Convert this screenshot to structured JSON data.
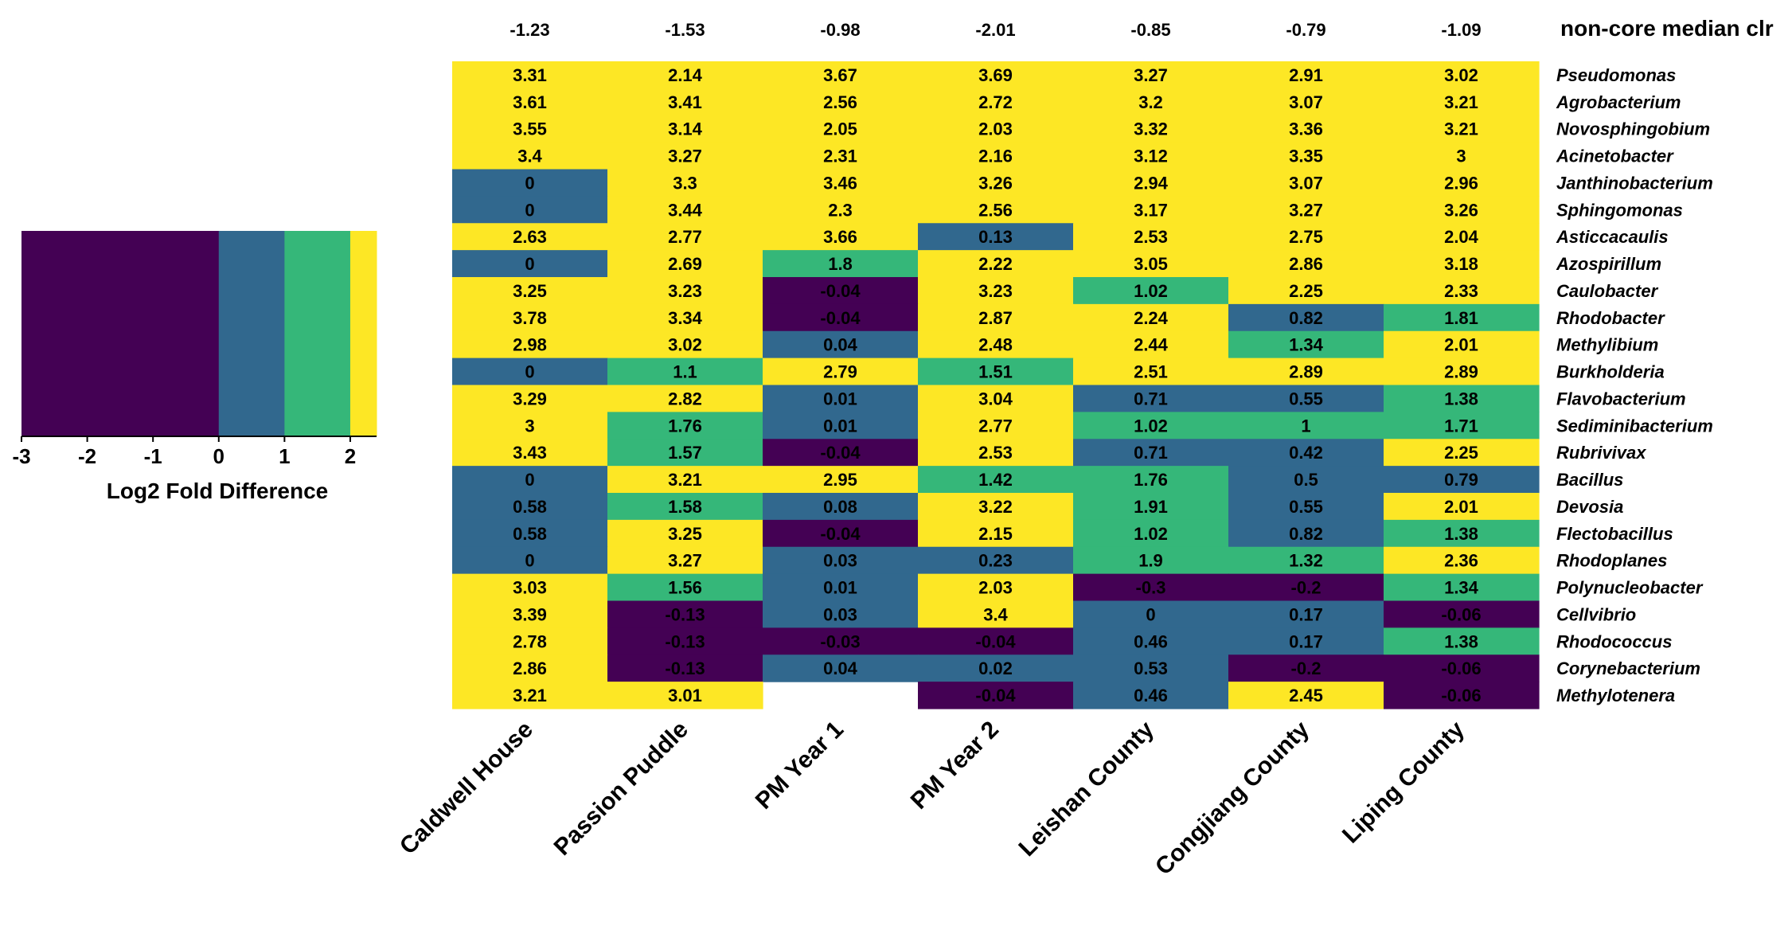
{
  "chart_data": {
    "type": "heatmap",
    "columns": [
      "Caldwell House",
      "Passion Puddle",
      "PM Year 1",
      "PM Year 2",
      "Leishan County",
      "Congjiang County",
      "Liping County"
    ],
    "top_row_label": "non-core median clr",
    "top_row_values": [
      "-1.23",
      "-1.53",
      "-0.98",
      "-2.01",
      "-0.85",
      "-0.79",
      "-1.09"
    ],
    "rows": [
      "Pseudomonas",
      "Agrobacterium",
      "Novosphingobium",
      "Acinetobacter",
      "Janthinobacterium",
      "Sphingomonas",
      "Asticcacaulis",
      "Azospirillum",
      "Caulobacter",
      "Rhodobacter",
      "Methylibium",
      "Burkholderia",
      "Flavobacterium",
      "Sediminibacterium",
      "Rubrivivax",
      "Bacillus",
      "Devosia",
      "Flectobacillus",
      "Rhodoplanes",
      "Polynucleobacter",
      "Cellvibrio",
      "Rhodococcus",
      "Corynebacterium",
      "Methylotenera"
    ],
    "values": [
      [
        "3.31",
        "2.14",
        "3.67",
        "3.69",
        "3.27",
        "2.91",
        "3.02"
      ],
      [
        "3.61",
        "3.41",
        "2.56",
        "2.72",
        "3.2",
        "3.07",
        "3.21"
      ],
      [
        "3.55",
        "3.14",
        "2.05",
        "2.03",
        "3.32",
        "3.36",
        "3.21"
      ],
      [
        "3.4",
        "3.27",
        "2.31",
        "2.16",
        "3.12",
        "3.35",
        "3"
      ],
      [
        "0",
        "3.3",
        "3.46",
        "3.26",
        "2.94",
        "3.07",
        "2.96"
      ],
      [
        "0",
        "3.44",
        "2.3",
        "2.56",
        "3.17",
        "3.27",
        "3.26"
      ],
      [
        "2.63",
        "2.77",
        "3.66",
        "0.13",
        "2.53",
        "2.75",
        "2.04"
      ],
      [
        "0",
        "2.69",
        "1.8",
        "2.22",
        "3.05",
        "2.86",
        "3.18"
      ],
      [
        "3.25",
        "3.23",
        "-0.04",
        "3.23",
        "1.02",
        "2.25",
        "2.33"
      ],
      [
        "3.78",
        "3.34",
        "-0.04",
        "2.87",
        "2.24",
        "0.82",
        "1.81"
      ],
      [
        "2.98",
        "3.02",
        "0.04",
        "2.48",
        "2.44",
        "1.34",
        "2.01"
      ],
      [
        "0",
        "1.1",
        "2.79",
        "1.51",
        "2.51",
        "2.89",
        "2.89"
      ],
      [
        "3.29",
        "2.82",
        "0.01",
        "3.04",
        "0.71",
        "0.55",
        "1.38"
      ],
      [
        "3",
        "1.76",
        "0.01",
        "2.77",
        "1.02",
        "1",
        "1.71"
      ],
      [
        "3.43",
        "1.57",
        "-0.04",
        "2.53",
        "0.71",
        "0.42",
        "2.25"
      ],
      [
        "0",
        "3.21",
        "2.95",
        "1.42",
        "1.76",
        "0.5",
        "0.79"
      ],
      [
        "0.58",
        "1.58",
        "0.08",
        "3.22",
        "1.91",
        "0.55",
        "2.01"
      ],
      [
        "0.58",
        "3.25",
        "-0.04",
        "2.15",
        "1.02",
        "0.82",
        "1.38"
      ],
      [
        "0",
        "3.27",
        "0.03",
        "0.23",
        "1.9",
        "1.32",
        "2.36"
      ],
      [
        "3.03",
        "1.56",
        "0.01",
        "2.03",
        "-0.3",
        "-0.2",
        "1.34"
      ],
      [
        "3.39",
        "-0.13",
        "0.03",
        "3.4",
        "0",
        "0.17",
        "-0.06"
      ],
      [
        "2.78",
        "-0.13",
        "-0.03",
        "-0.04",
        "0.46",
        "0.17",
        "1.38"
      ],
      [
        "2.86",
        "-0.13",
        "0.04",
        "0.02",
        "0.53",
        "-0.2",
        "-0.06"
      ],
      [
        "3.21",
        "3.01",
        null,
        "-0.04",
        "0.46",
        "2.45",
        "-0.06"
      ]
    ],
    "colorbar": {
      "label": "Log2 Fold Difference",
      "ticks": [
        "-3",
        "-2",
        "-1",
        "0",
        "1",
        "2"
      ],
      "range": [
        -3,
        2.4
      ],
      "bins": [
        {
          "from": -3,
          "to": 0,
          "color": "#440154"
        },
        {
          "from": 0,
          "to": 1,
          "color": "#31688e"
        },
        {
          "from": 1,
          "to": 2,
          "color": "#35b779"
        },
        {
          "from": 2,
          "to": 2.4,
          "color": "#fde725"
        }
      ]
    },
    "legend_placement": "left"
  }
}
